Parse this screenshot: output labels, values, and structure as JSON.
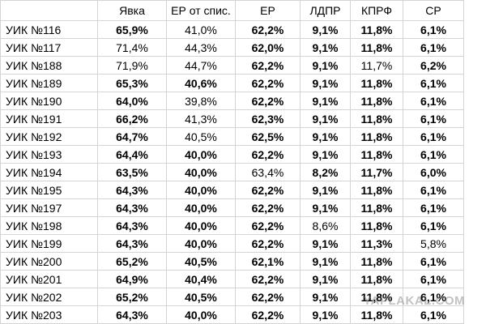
{
  "table": {
    "header": [
      "",
      "Явка",
      "ЕР от спис.",
      "ЕР",
      "ЛДПР",
      "КПРФ",
      "СР"
    ],
    "rows": [
      {
        "name": "УИК №116",
        "cells": [
          "65,9%",
          "41,0%",
          "62,2%",
          "9,1%",
          "11,8%",
          "6,1%"
        ],
        "bold": [
          true,
          false,
          true,
          true,
          true,
          true
        ]
      },
      {
        "name": "УИК №117",
        "cells": [
          "71,4%",
          "44,3%",
          "62,0%",
          "9,1%",
          "11,8%",
          "6,1%"
        ],
        "bold": [
          false,
          false,
          true,
          true,
          true,
          true
        ]
      },
      {
        "name": "УИК №188",
        "cells": [
          "71,9%",
          "44,7%",
          "62,2%",
          "9,1%",
          "11,7%",
          "6,2%"
        ],
        "bold": [
          false,
          false,
          true,
          true,
          false,
          true
        ]
      },
      {
        "name": "УИК №189",
        "cells": [
          "65,3%",
          "40,6%",
          "62,2%",
          "9,1%",
          "11,8%",
          "6,1%"
        ],
        "bold": [
          true,
          true,
          true,
          true,
          true,
          true
        ]
      },
      {
        "name": "УИК №190",
        "cells": [
          "64,0%",
          "39,8%",
          "62,2%",
          "9,1%",
          "11,8%",
          "6,1%"
        ],
        "bold": [
          true,
          false,
          true,
          true,
          true,
          true
        ]
      },
      {
        "name": "УИК №191",
        "cells": [
          "66,2%",
          "41,3%",
          "62,3%",
          "9,1%",
          "11,8%",
          "6,1%"
        ],
        "bold": [
          true,
          false,
          true,
          true,
          true,
          true
        ]
      },
      {
        "name": "УИК №192",
        "cells": [
          "64,7%",
          "40,5%",
          "62,5%",
          "9,1%",
          "11,8%",
          "6,1%"
        ],
        "bold": [
          true,
          false,
          true,
          true,
          true,
          true
        ]
      },
      {
        "name": "УИК №193",
        "cells": [
          "64,4%",
          "40,0%",
          "62,2%",
          "9,1%",
          "11,8%",
          "6,1%"
        ],
        "bold": [
          true,
          true,
          true,
          true,
          true,
          true
        ]
      },
      {
        "name": "УИК №194",
        "cells": [
          "63,5%",
          "40,0%",
          "63,4%",
          "8,2%",
          "11,7%",
          "6,0%"
        ],
        "bold": [
          true,
          true,
          false,
          true,
          true,
          true
        ]
      },
      {
        "name": "УИК №195",
        "cells": [
          "64,3%",
          "40,0%",
          "62,2%",
          "9,1%",
          "11,8%",
          "6,1%"
        ],
        "bold": [
          true,
          true,
          true,
          true,
          true,
          true
        ]
      },
      {
        "name": "УИК №197",
        "cells": [
          "64,3%",
          "40,0%",
          "62,2%",
          "9,1%",
          "11,8%",
          "6,1%"
        ],
        "bold": [
          true,
          true,
          true,
          true,
          true,
          true
        ]
      },
      {
        "name": "УИК №198",
        "cells": [
          "64,3%",
          "40,0%",
          "62,2%",
          "8,6%",
          "11,8%",
          "6,1%"
        ],
        "bold": [
          true,
          true,
          true,
          false,
          true,
          true
        ]
      },
      {
        "name": "УИК №199",
        "cells": [
          "64,3%",
          "40,0%",
          "62,2%",
          "9,1%",
          "11,3%",
          "5,8%"
        ],
        "bold": [
          true,
          true,
          true,
          true,
          true,
          false
        ]
      },
      {
        "name": "УИК №200",
        "cells": [
          "65,2%",
          "40,5%",
          "62,1%",
          "9,1%",
          "11,8%",
          "6,1%"
        ],
        "bold": [
          true,
          true,
          true,
          true,
          true,
          true
        ]
      },
      {
        "name": "УИК №201",
        "cells": [
          "64,9%",
          "40,4%",
          "62,2%",
          "9,1%",
          "11,8%",
          "6,1%"
        ],
        "bold": [
          true,
          true,
          true,
          true,
          true,
          true
        ]
      },
      {
        "name": "УИК №202",
        "cells": [
          "65,2%",
          "40,5%",
          "62,2%",
          "9,1%",
          "11,8%",
          "6,1%"
        ],
        "bold": [
          true,
          true,
          true,
          true,
          true,
          true
        ]
      },
      {
        "name": "УИК №203",
        "cells": [
          "64,3%",
          "40,0%",
          "62,2%",
          "9,1%",
          "11,8%",
          "6,1%"
        ],
        "bold": [
          true,
          true,
          true,
          true,
          true,
          true
        ]
      }
    ]
  },
  "watermark": "YAPLAKAL.COM"
}
